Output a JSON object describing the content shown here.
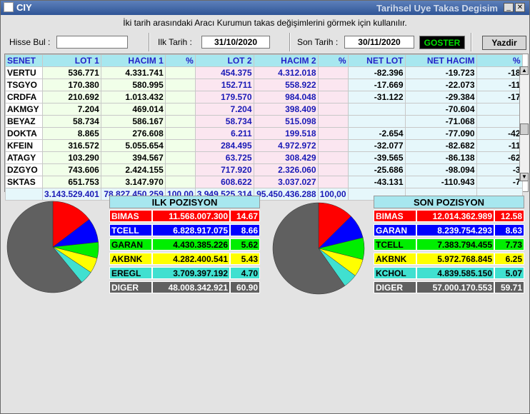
{
  "window": {
    "app_name": "CIY",
    "title": "Tarihsel Uye Takas Degisim"
  },
  "info_text": "İki tarih arasındaki  Aracı Kurumun takas değişimlerini görmek için kullanılır.",
  "toolbar": {
    "hisse_bul_label": "Hisse Bul :",
    "hisse_bul_value": "",
    "ilk_tarih_label": "Ilk Tarih :",
    "ilk_tarih_value": "31/10/2020",
    "son_tarih_label": "Son Tarih :",
    "son_tarih_value": "30/11/2020",
    "goster_label": "GOSTER",
    "yazdir_label": "Yazdir"
  },
  "table": {
    "headers": [
      "SENET",
      "LOT 1",
      "HACIM 1",
      "%",
      "LOT 2",
      "HACIM 2",
      "%",
      "NET LOT",
      "NET HACIM",
      "%"
    ],
    "rows": [
      [
        "VERTU",
        "536.771",
        "4.331.741",
        "",
        "454.375",
        "4.312.018",
        "",
        "-82.396",
        "-19.723",
        "-18"
      ],
      [
        "TSGYO",
        "170.380",
        "580.995",
        "",
        "152.711",
        "558.922",
        "",
        "-17.669",
        "-22.073",
        "-11"
      ],
      [
        "CRDFA",
        "210.692",
        "1.013.432",
        "",
        "179.570",
        "984.048",
        "",
        "-31.122",
        "-29.384",
        "-17"
      ],
      [
        "AKMGY",
        "7.204",
        "469.014",
        "",
        "7.204",
        "398.409",
        "",
        "",
        "-70.604",
        ""
      ],
      [
        "BEYAZ",
        "58.734",
        "586.167",
        "",
        "58.734",
        "515.098",
        "",
        "",
        "-71.068",
        ""
      ],
      [
        "DOKTA",
        "8.865",
        "276.608",
        "",
        "6.211",
        "199.518",
        "",
        "-2.654",
        "-77.090",
        "-42"
      ],
      [
        "KFEIN",
        "316.572",
        "5.055.654",
        "",
        "284.495",
        "4.972.972",
        "",
        "-32.077",
        "-82.682",
        "-11"
      ],
      [
        "ATAGY",
        "103.290",
        "394.567",
        "",
        "63.725",
        "308.429",
        "",
        "-39.565",
        "-86.138",
        "-62"
      ],
      [
        "DZGYO",
        "743.606",
        "2.424.155",
        "",
        "717.920",
        "2.326.060",
        "",
        "-25.686",
        "-98.094",
        "-3"
      ],
      [
        "SKTAS",
        "651.753",
        "3.147.970",
        "",
        "608.622",
        "3.037.027",
        "",
        "-43.131",
        "-110.943",
        "-7"
      ]
    ],
    "totals": [
      "",
      "3.143.529.401",
      "78.827.450.259",
      "100,00",
      "3.949.525.314",
      "95.450.436.288",
      "100,00",
      "",
      "",
      ""
    ]
  },
  "ilk_pozisyon": {
    "title": "ILK POZISYON",
    "rows": [
      {
        "name": "BIMAS",
        "value": "11.568.007.300",
        "pct": "14.67",
        "color": "#ff0000",
        "text": "#ffffff"
      },
      {
        "name": "TCELL",
        "value": "6.828.917.075",
        "pct": "8.66",
        "color": "#0000ff",
        "text": "#ffffff"
      },
      {
        "name": "GARAN",
        "value": "4.430.385.226",
        "pct": "5.62",
        "color": "#00ee00",
        "text": "#000000"
      },
      {
        "name": "AKBNK",
        "value": "4.282.400.541",
        "pct": "5.43",
        "color": "#ffff00",
        "text": "#000000"
      },
      {
        "name": "EREGL",
        "value": "3.709.397.192",
        "pct": "4.70",
        "color": "#40e0d0",
        "text": "#000000"
      },
      {
        "name": "DIGER",
        "value": "48.008.342.921",
        "pct": "60.90",
        "color": "#606060",
        "text": "#ffffff"
      }
    ]
  },
  "son_pozisyon": {
    "title": "SON POZISYON",
    "rows": [
      {
        "name": "BIMAS",
        "value": "12.014.362.989",
        "pct": "12.58",
        "color": "#ff0000",
        "text": "#ffffff"
      },
      {
        "name": "GARAN",
        "value": "8.239.754.293",
        "pct": "8.63",
        "color": "#0000ff",
        "text": "#ffffff"
      },
      {
        "name": "TCELL",
        "value": "7.383.794.455",
        "pct": "7.73",
        "color": "#00ee00",
        "text": "#000000"
      },
      {
        "name": "AKBNK",
        "value": "5.972.768.845",
        "pct": "6.25",
        "color": "#ffff00",
        "text": "#000000"
      },
      {
        "name": "KCHOL",
        "value": "4.839.585.150",
        "pct": "5.07",
        "color": "#40e0d0",
        "text": "#000000"
      },
      {
        "name": "DIGER",
        "value": "57.000.170.553",
        "pct": "59.71",
        "color": "#606060",
        "text": "#ffffff"
      }
    ]
  }
}
